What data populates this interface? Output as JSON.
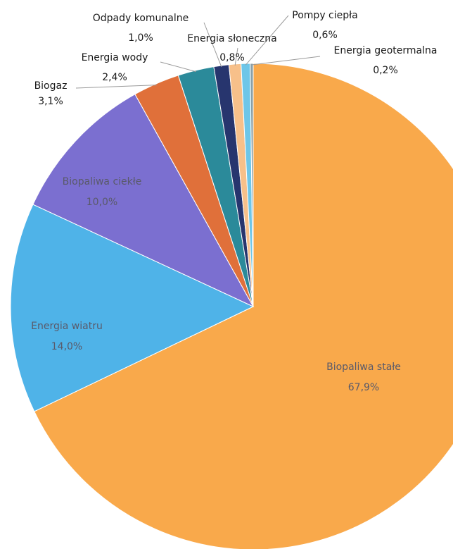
{
  "chart_data": {
    "type": "pie",
    "categories": [
      "Biopaliwa stałe",
      "Energia wiatru",
      "Biopaliwa ciekłe",
      "Biogaz",
      "Energia wody",
      "Odpady komunalne",
      "Energia słoneczna",
      "Pompy ciepła",
      "Energia geotermalna"
    ],
    "values": [
      67.9,
      14.0,
      10.0,
      3.1,
      2.4,
      1.0,
      0.8,
      0.6,
      0.2
    ],
    "value_labels": [
      "67,9%",
      "14,0%",
      "10,0%",
      "3,1%",
      "2,4%",
      "1,0%",
      "0,8%",
      "0,6%",
      "0,2%"
    ],
    "colors": [
      "#f9a94b",
      "#4fb3e8",
      "#7b6fd0",
      "#e0703a",
      "#2b8a9a",
      "#27356e",
      "#f7c08a",
      "#6ec6e8",
      "#8aa0a8"
    ]
  }
}
